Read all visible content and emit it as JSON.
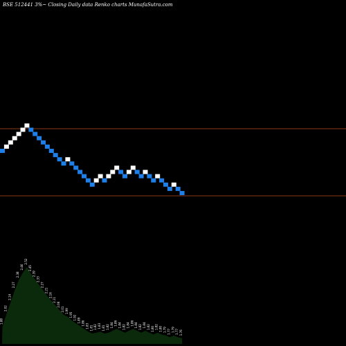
{
  "header": {
    "title": "BSE 512441 3%~ Closing Daily data Renko charts MunafaSutra.com"
  },
  "colors": {
    "background": "#000000",
    "up_brick": "#ffffff",
    "down_brick": "#1e7fe8",
    "reference_line": "#8b3a1a",
    "volume_fill": "#0b2a0b",
    "volume_text": "#ffffff"
  },
  "chart_data": [
    {
      "type": "renko",
      "title": "BSE 512441 3%~ Closing Daily data Renko charts MunafaSutra.com",
      "box_pattern": [
        -1,
        1,
        1,
        1,
        1,
        1,
        1,
        -1,
        -1,
        -1,
        -1,
        -1,
        -1,
        -1,
        -1,
        -1,
        1,
        -1,
        -1,
        -1,
        -1,
        -1,
        -1,
        1,
        1,
        -1,
        1,
        1,
        1,
        -1,
        -1,
        1,
        1,
        -1,
        -1,
        1,
        -1,
        -1,
        1,
        -1,
        -1,
        -1,
        1,
        -1,
        -1
      ],
      "reference_levels": [
        "upper",
        "lower"
      ],
      "reference_lines": true,
      "grid": false,
      "legend": "none"
    },
    {
      "type": "area",
      "name": "volume",
      "labels": [
        "1.88",
        "2.02",
        "2.14",
        "2.27",
        "2.38",
        "2.46",
        "2.52",
        "2.45",
        "2.39",
        "2.33",
        "2.27",
        "2.21",
        "2.16",
        "2.11",
        "2.06",
        "2.01",
        "1.99",
        "1.95",
        "1.92",
        "1.89",
        "1.86",
        "1.83",
        "1.81",
        "1.82",
        "1.83",
        "1.81",
        "1.82",
        "1.84",
        "1.86",
        "1.84",
        "1.82",
        "1.84",
        "1.86",
        "1.84",
        "1.82",
        "1.84",
        "1.82",
        "1.80",
        "1.82",
        "1.80",
        "1.79",
        "1.77",
        "1.79",
        "1.77",
        "1.76"
      ],
      "values": [
        1.88,
        2.02,
        2.14,
        2.27,
        2.38,
        2.46,
        2.52,
        2.45,
        2.39,
        2.33,
        2.27,
        2.21,
        2.16,
        2.11,
        2.06,
        2.01,
        1.99,
        1.95,
        1.92,
        1.89,
        1.86,
        1.83,
        1.81,
        1.82,
        1.83,
        1.81,
        1.82,
        1.84,
        1.86,
        1.84,
        1.82,
        1.84,
        1.86,
        1.84,
        1.82,
        1.84,
        1.82,
        1.8,
        1.82,
        1.8,
        1.79,
        1.77,
        1.79,
        1.77,
        1.76
      ]
    }
  ]
}
